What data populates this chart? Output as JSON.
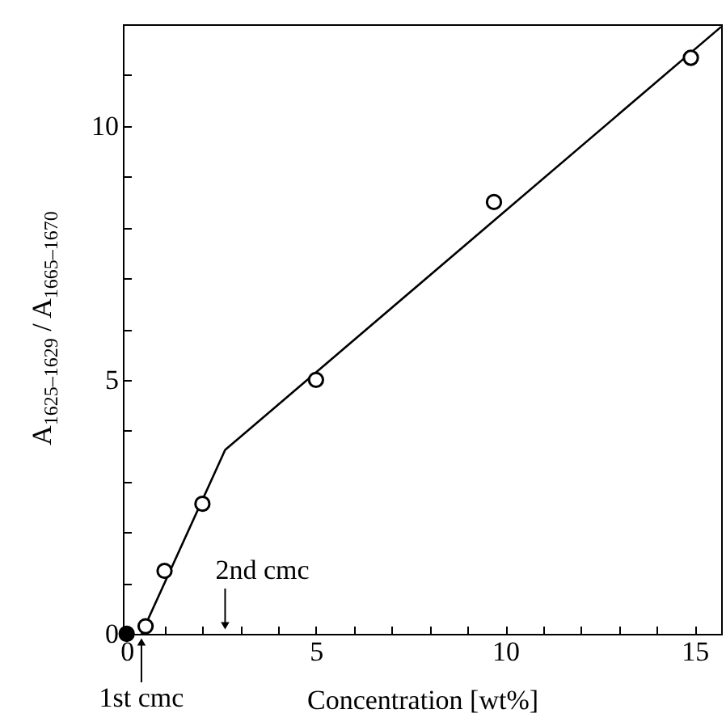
{
  "chart_data": {
    "type": "scatter",
    "xlabel": "Concentration [wt%]",
    "ylabel": "A$_{1625–1629}$ / A$_{1665–1670}$",
    "xlim": [
      -0.1,
      15.7
    ],
    "ylim": [
      0,
      12
    ],
    "xticks": [
      0,
      {
        "value": 1,
        "label": null
      },
      {
        "value": 2,
        "label": null
      },
      {
        "value": 3,
        "label": null
      },
      {
        "value": 4,
        "label": null
      },
      5,
      {
        "value": 6,
        "label": null
      },
      {
        "value": 7,
        "label": null
      },
      {
        "value": 8,
        "label": null
      },
      {
        "value": 9,
        "label": null
      },
      10,
      {
        "value": 11,
        "label": null
      },
      {
        "value": 12,
        "label": null
      },
      {
        "value": 13,
        "label": null
      },
      {
        "value": 14,
        "label": null
      },
      15
    ],
    "yticks": [
      0,
      {
        "value": 1,
        "label": null
      },
      {
        "value": 2,
        "label": null
      },
      {
        "value": 3,
        "label": null
      },
      {
        "value": 4,
        "label": null
      },
      5,
      {
        "value": 6,
        "label": null
      },
      {
        "value": 7,
        "label": null
      },
      {
        "value": 8,
        "label": null
      },
      {
        "value": 9,
        "label": null
      },
      10,
      {
        "value": 11,
        "label": null
      }
    ],
    "grid": false,
    "series": [
      {
        "color": "#000000",
        "marker": "circle",
        "x": [
          0
        ],
        "values": [
          0
        ]
      },
      {
        "color": "#000000",
        "marker": "circle",
        "x": [
          0.5,
          1.0,
          2.0,
          5.0,
          9.7,
          14.9
        ],
        "values": [
          0.15,
          1.24,
          2.56,
          5.0,
          8.5,
          11.34
        ]
      },
      {
        "type": "line",
        "color": "#000000",
        "x": [
          0.39,
          2.6,
          15.7
        ],
        "values": [
          0,
          3.62,
          11.95
        ],
        "line_style": "solid"
      }
    ],
    "annotations": [
      "1st cmc",
      "2nd cmc"
    ]
  }
}
